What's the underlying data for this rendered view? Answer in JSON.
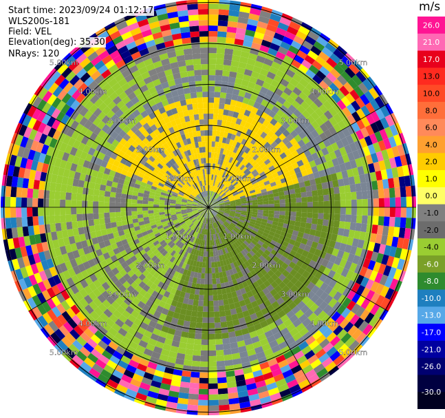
{
  "header": {
    "start_time": "Start time: 2023/09/24 01:12:17",
    "instrument": "WLS200s-181",
    "field": "Field: VEL",
    "elevation": "Elevation(deg): 35.30",
    "nrays": "NRays: 120"
  },
  "colorbar": {
    "unit": "m/s",
    "ticks": [
      "26.0",
      "21.0",
      "17.0",
      "13.0",
      "10.0",
      "8.0",
      "6.0",
      "4.0",
      "2.0",
      "1.0",
      "0.0",
      "-1.0",
      "-2.0",
      "-4.0",
      "-6.0",
      "-8.0",
      "-10.0",
      "-13.0",
      "-17.0",
      "-21.0",
      "-26.0",
      "-30.0"
    ],
    "colors": [
      "#ff1493",
      "#ff69b4",
      "#e8001c",
      "#ff2a1f",
      "#ff4a26",
      "#ff6e3a",
      "#ff8a5a",
      "#ffa030",
      "#ffcc00",
      "#ffff00",
      "#ffff66",
      "#808080",
      "#6c6c6c",
      "#9acd32",
      "#7aa028",
      "#2e8b2e",
      "#1e7fbf",
      "#56a8e8",
      "#0000ff",
      "#0000a0",
      "#000070",
      "#000040",
      "#000020"
    ]
  },
  "chart_data": {
    "type": "heatmap",
    "title": "",
    "xlabel": "",
    "ylabel": "",
    "range_ring_labels": [
      "1.00km",
      "2.00km",
      "3.00km",
      "4.00km",
      "5.00km"
    ],
    "range_rings_km": [
      1,
      2,
      3,
      4,
      5
    ],
    "n_rays": 120,
    "elevation_deg": 35.3,
    "field": "VEL",
    "velocity_unit": "m/s",
    "colorbar_range": [
      -30.0,
      26.0
    ]
  }
}
